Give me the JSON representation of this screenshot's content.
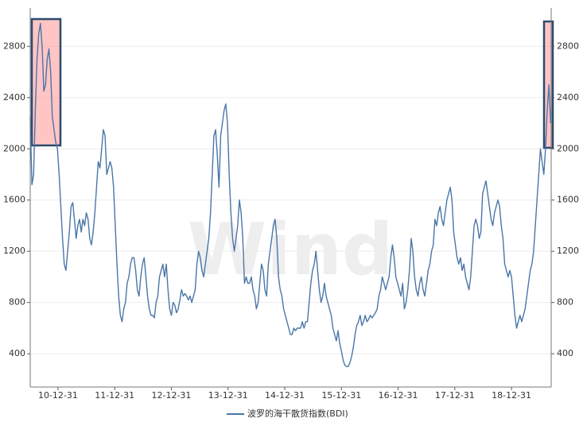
{
  "chart_data": {
    "type": "line",
    "watermark": "Wind",
    "xlim": [
      2010.51,
      2019.7
    ],
    "xticks": [
      {
        "value": 2011.0,
        "label": "10-12-31"
      },
      {
        "value": 2012.0,
        "label": "11-12-31"
      },
      {
        "value": 2013.0,
        "label": "12-12-31"
      },
      {
        "value": 2014.0,
        "label": "13-12-31"
      },
      {
        "value": 2015.0,
        "label": "14-12-31"
      },
      {
        "value": 2016.0,
        "label": "15-12-31"
      },
      {
        "value": 2017.0,
        "label": "16-12-31"
      },
      {
        "value": 2018.0,
        "label": "17-12-31"
      },
      {
        "value": 2019.0,
        "label": "18-12-31"
      }
    ],
    "ylim": [
      140,
      3100
    ],
    "yticks": [
      400,
      800,
      1200,
      1600,
      2000,
      2400,
      2800
    ],
    "y2lim": [
      140,
      3100
    ],
    "y2ticks": [
      400,
      800,
      1200,
      1600,
      2000,
      2400,
      2800
    ],
    "grid": true,
    "legend": "bottom",
    "x": [
      2010.51,
      2010.54,
      2010.57,
      2010.6,
      2010.63,
      2010.66,
      2010.69,
      2010.72,
      2010.75,
      2010.78,
      2010.81,
      2010.84,
      2010.87,
      2010.9,
      2010.93,
      2010.96,
      2010.99,
      2011.02,
      2011.05,
      2011.08,
      2011.11,
      2011.14,
      2011.17,
      2011.2,
      2011.23,
      2011.26,
      2011.29,
      2011.32,
      2011.35,
      2011.38,
      2011.41,
      2011.44,
      2011.47,
      2011.5,
      2011.53,
      2011.56,
      2011.59,
      2011.62,
      2011.65,
      2011.68,
      2011.71,
      2011.74,
      2011.77,
      2011.8,
      2011.83,
      2011.86,
      2011.89,
      2011.92,
      2011.95,
      2011.98,
      2012.01,
      2012.04,
      2012.07,
      2012.1,
      2012.13,
      2012.16,
      2012.19,
      2012.22,
      2012.25,
      2012.28,
      2012.31,
      2012.34,
      2012.37,
      2012.4,
      2012.43,
      2012.46,
      2012.49,
      2012.52,
      2012.55,
      2012.58,
      2012.61,
      2012.64,
      2012.67,
      2012.7,
      2012.73,
      2012.76,
      2012.79,
      2012.82,
      2012.85,
      2012.88,
      2012.91,
      2012.94,
      2012.97,
      2013.0,
      2013.03,
      2013.06,
      2013.09,
      2013.12,
      2013.15,
      2013.18,
      2013.21,
      2013.24,
      2013.27,
      2013.3,
      2013.33,
      2013.36,
      2013.39,
      2013.42,
      2013.45,
      2013.48,
      2013.51,
      2013.54,
      2013.57,
      2013.6,
      2013.63,
      2013.66,
      2013.69,
      2013.72,
      2013.75,
      2013.78,
      2013.81,
      2013.84,
      2013.87,
      2013.9,
      2013.93,
      2013.96,
      2013.99,
      2014.02,
      2014.05,
      2014.08,
      2014.11,
      2014.14,
      2014.17,
      2014.2,
      2014.23,
      2014.26,
      2014.29,
      2014.32,
      2014.35,
      2014.38,
      2014.41,
      2014.44,
      2014.47,
      2014.5,
      2014.53,
      2014.56,
      2014.59,
      2014.62,
      2014.65,
      2014.68,
      2014.71,
      2014.74,
      2014.77,
      2014.8,
      2014.83,
      2014.86,
      2014.89,
      2014.92,
      2014.95,
      2014.98,
      2015.01,
      2015.04,
      2015.07,
      2015.1,
      2015.13,
      2015.16,
      2015.19,
      2015.22,
      2015.25,
      2015.28,
      2015.31,
      2015.34,
      2015.37,
      2015.4,
      2015.43,
      2015.46,
      2015.49,
      2015.52,
      2015.55,
      2015.58,
      2015.61,
      2015.64,
      2015.67,
      2015.7,
      2015.73,
      2015.76,
      2015.79,
      2015.82,
      2015.85,
      2015.88,
      2015.91,
      2015.94,
      2015.97,
      2016.0,
      2016.03,
      2016.06,
      2016.09,
      2016.12,
      2016.15,
      2016.18,
      2016.21,
      2016.24,
      2016.27,
      2016.3,
      2016.33,
      2016.36,
      2016.39,
      2016.42,
      2016.45,
      2016.48,
      2016.51,
      2016.54,
      2016.57,
      2016.6,
      2016.63,
      2016.66,
      2016.69,
      2016.72,
      2016.75,
      2016.78,
      2016.81,
      2016.84,
      2016.87,
      2016.9,
      2016.93,
      2016.96,
      2016.99,
      2017.02,
      2017.05,
      2017.08,
      2017.11,
      2017.14,
      2017.17,
      2017.2,
      2017.23,
      2017.26,
      2017.29,
      2017.32,
      2017.35,
      2017.38,
      2017.41,
      2017.44,
      2017.47,
      2017.5,
      2017.53,
      2017.56,
      2017.59,
      2017.62,
      2017.65,
      2017.68,
      2017.71,
      2017.74,
      2017.77,
      2017.8,
      2017.83,
      2017.86,
      2017.89,
      2017.92,
      2017.95,
      2017.98,
      2018.01,
      2018.04,
      2018.07,
      2018.1,
      2018.13,
      2018.16,
      2018.19,
      2018.22,
      2018.25,
      2018.28,
      2018.31,
      2018.34,
      2018.37,
      2018.4,
      2018.43,
      2018.46,
      2018.49,
      2018.52,
      2018.55,
      2018.58,
      2018.61,
      2018.64,
      2018.67,
      2018.7,
      2018.73,
      2018.76,
      2018.79,
      2018.82,
      2018.85,
      2018.88,
      2018.91,
      2018.94,
      2018.97,
      2019.0,
      2019.03,
      2019.06,
      2019.09,
      2019.12,
      2019.15,
      2019.18,
      2019.21,
      2019.24,
      2019.27,
      2019.3,
      2019.33,
      2019.36,
      2019.39,
      2019.42,
      2019.45,
      2019.48,
      2019.51,
      2019.54,
      2019.57,
      2019.6,
      2019.63,
      2019.66,
      2019.69
    ],
    "series": [
      {
        "name": "波罗的海干散货指数(BDI)",
        "color": "#4a76a8",
        "values": [
          2250,
          1720,
          1800,
          2300,
          2700,
          2900,
          2980,
          2800,
          2450,
          2500,
          2700,
          2780,
          2600,
          2250,
          2150,
          2050,
          2000,
          1800,
          1550,
          1300,
          1100,
          1050,
          1200,
          1350,
          1550,
          1580,
          1450,
          1300,
          1400,
          1450,
          1350,
          1450,
          1400,
          1500,
          1450,
          1300,
          1250,
          1350,
          1500,
          1700,
          1900,
          1850,
          2000,
          2150,
          2100,
          1800,
          1850,
          1900,
          1850,
          1700,
          1400,
          1100,
          850,
          700,
          650,
          750,
          800,
          950,
          1000,
          1100,
          1150,
          1150,
          1050,
          900,
          850,
          1000,
          1100,
          1150,
          1000,
          850,
          750,
          700,
          700,
          680,
          800,
          850,
          1000,
          1050,
          1100,
          1000,
          1100,
          900,
          750,
          700,
          800,
          780,
          720,
          750,
          820,
          900,
          850,
          870,
          850,
          820,
          850,
          800,
          850,
          900,
          1100,
          1200,
          1150,
          1050,
          1000,
          1100,
          1200,
          1300,
          1500,
          1800,
          2100,
          2150,
          1950,
          1700,
          2100,
          2200,
          2300,
          2350,
          2200,
          1800,
          1500,
          1300,
          1200,
          1300,
          1400,
          1600,
          1500,
          1300,
          950,
          1000,
          950,
          950,
          1000,
          900,
          850,
          750,
          800,
          950,
          1100,
          1050,
          900,
          850,
          1100,
          1200,
          1300,
          1400,
          1450,
          1300,
          1000,
          900,
          850,
          750,
          700,
          650,
          600,
          550,
          550,
          600,
          580,
          600,
          600,
          600,
          650,
          600,
          650,
          650,
          800,
          950,
          1050,
          1100,
          1200,
          1050,
          900,
          800,
          850,
          950,
          850,
          800,
          750,
          700,
          600,
          550,
          500,
          580,
          480,
          420,
          350,
          310,
          300,
          300,
          330,
          380,
          450,
          550,
          620,
          650,
          700,
          620,
          650,
          700,
          650,
          670,
          700,
          680,
          700,
          720,
          750,
          850,
          900,
          1000,
          950,
          900,
          950,
          1000,
          1150,
          1250,
          1150,
          1000,
          950,
          900,
          850,
          950,
          750,
          800,
          900,
          1050,
          1300,
          1200,
          1000,
          900,
          850,
          950,
          1000,
          900,
          850,
          950,
          1050,
          1100,
          1200,
          1250,
          1450,
          1400,
          1500,
          1550,
          1450,
          1400,
          1500,
          1600,
          1650,
          1700,
          1600,
          1350,
          1250,
          1150,
          1100,
          1150,
          1050,
          1100,
          1000,
          950,
          900,
          1000,
          1200,
          1400,
          1450,
          1400,
          1300,
          1350,
          1650,
          1700,
          1750,
          1650,
          1550,
          1450,
          1400,
          1500,
          1550,
          1600,
          1550,
          1400,
          1300,
          1100,
          1050,
          1000,
          1050,
          1000,
          850,
          700,
          600,
          650,
          700,
          650,
          700,
          750,
          850,
          950,
          1050,
          1100,
          1200,
          1400,
          1600,
          1800,
          2000,
          1900,
          1800,
          2000,
          2300,
          2500,
          2200
        ]
      }
    ]
  }
}
